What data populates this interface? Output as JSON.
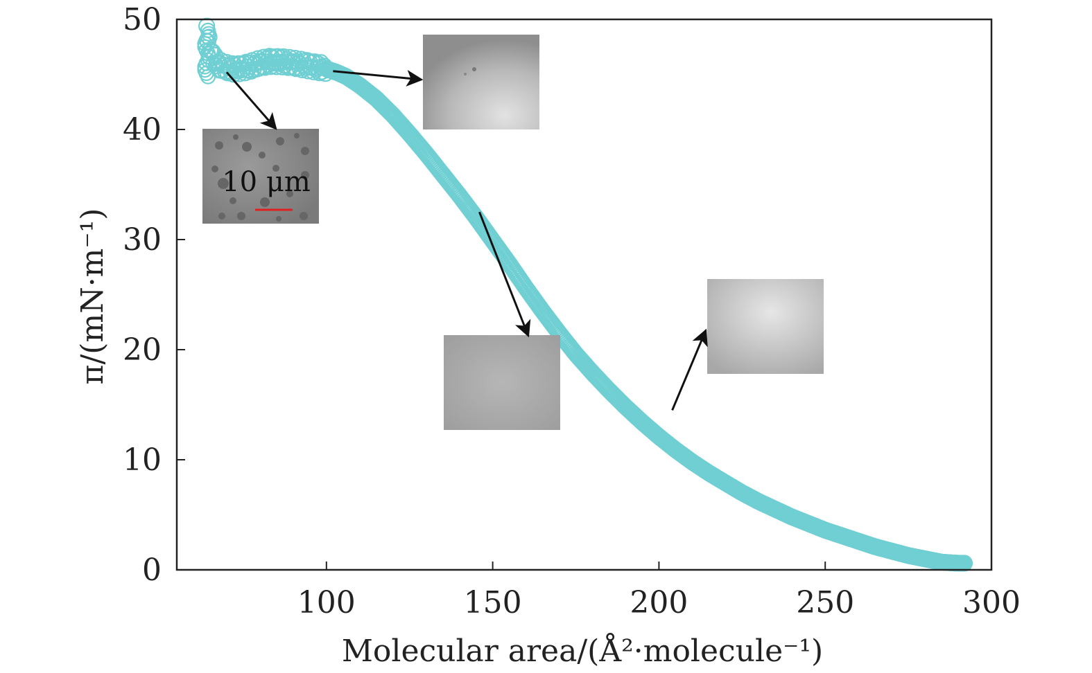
{
  "chart_data": {
    "type": "scatter",
    "title": "",
    "xlabel": "Molecular area/(Å²·molecule⁻¹)",
    "ylabel": "π/(mN·m⁻¹)",
    "xlim": [
      55,
      300
    ],
    "ylim": [
      0,
      50
    ],
    "xticks": [
      100,
      150,
      200,
      250,
      300
    ],
    "yticks": [
      0,
      10,
      20,
      30,
      40,
      50
    ],
    "grid": false,
    "legend": "none",
    "marker": "open-circle",
    "series": [
      {
        "color": "#6fcfd2",
        "x": [
          64,
          65,
          66,
          67,
          68,
          70,
          72,
          75,
          78,
          80,
          83,
          86,
          90,
          95,
          100,
          103,
          106,
          110,
          115,
          120,
          125,
          130,
          135,
          140,
          145,
          150,
          155,
          160,
          165,
          170,
          175,
          180,
          185,
          190,
          195,
          200,
          205,
          210,
          215,
          220,
          225,
          230,
          235,
          240,
          245,
          250,
          255,
          260,
          265,
          270,
          275,
          280,
          285,
          290,
          292
        ],
        "y": [
          49,
          47.5,
          46.5,
          46,
          45.8,
          45.6,
          45.5,
          45.6,
          45.8,
          46,
          46.2,
          46.2,
          46,
          45.8,
          45.5,
          45.2,
          44.8,
          44,
          42.8,
          41.3,
          39.6,
          37.8,
          35.9,
          34,
          32,
          29.9,
          27.8,
          25.6,
          23.5,
          21.5,
          19.6,
          17.9,
          16.3,
          14.8,
          13.4,
          12.1,
          10.9,
          9.8,
          8.8,
          7.9,
          7,
          6.2,
          5.5,
          4.8,
          4.2,
          3.6,
          3.1,
          2.6,
          2.1,
          1.7,
          1.3,
          1,
          0.7,
          0.6,
          0.6
        ]
      }
    ],
    "annotations": [
      {
        "text": "10 μm",
        "kind": "scale-bar",
        "scale_bar_color": "#e02020"
      }
    ],
    "insets": [
      {
        "anchor": [
          70,
          45.2
        ],
        "region": "collapse",
        "content": "micrograph-with-dark-domains"
      },
      {
        "anchor": [
          102,
          45.3
        ],
        "region": "plateau",
        "content": "micrograph-sparse-domains"
      },
      {
        "anchor": [
          146,
          32.5
        ],
        "region": "mid-compression",
        "content": "micrograph-uniform"
      },
      {
        "anchor": [
          204,
          14.5
        ],
        "region": "low-pressure",
        "content": "micrograph-uniform-bright"
      }
    ]
  }
}
